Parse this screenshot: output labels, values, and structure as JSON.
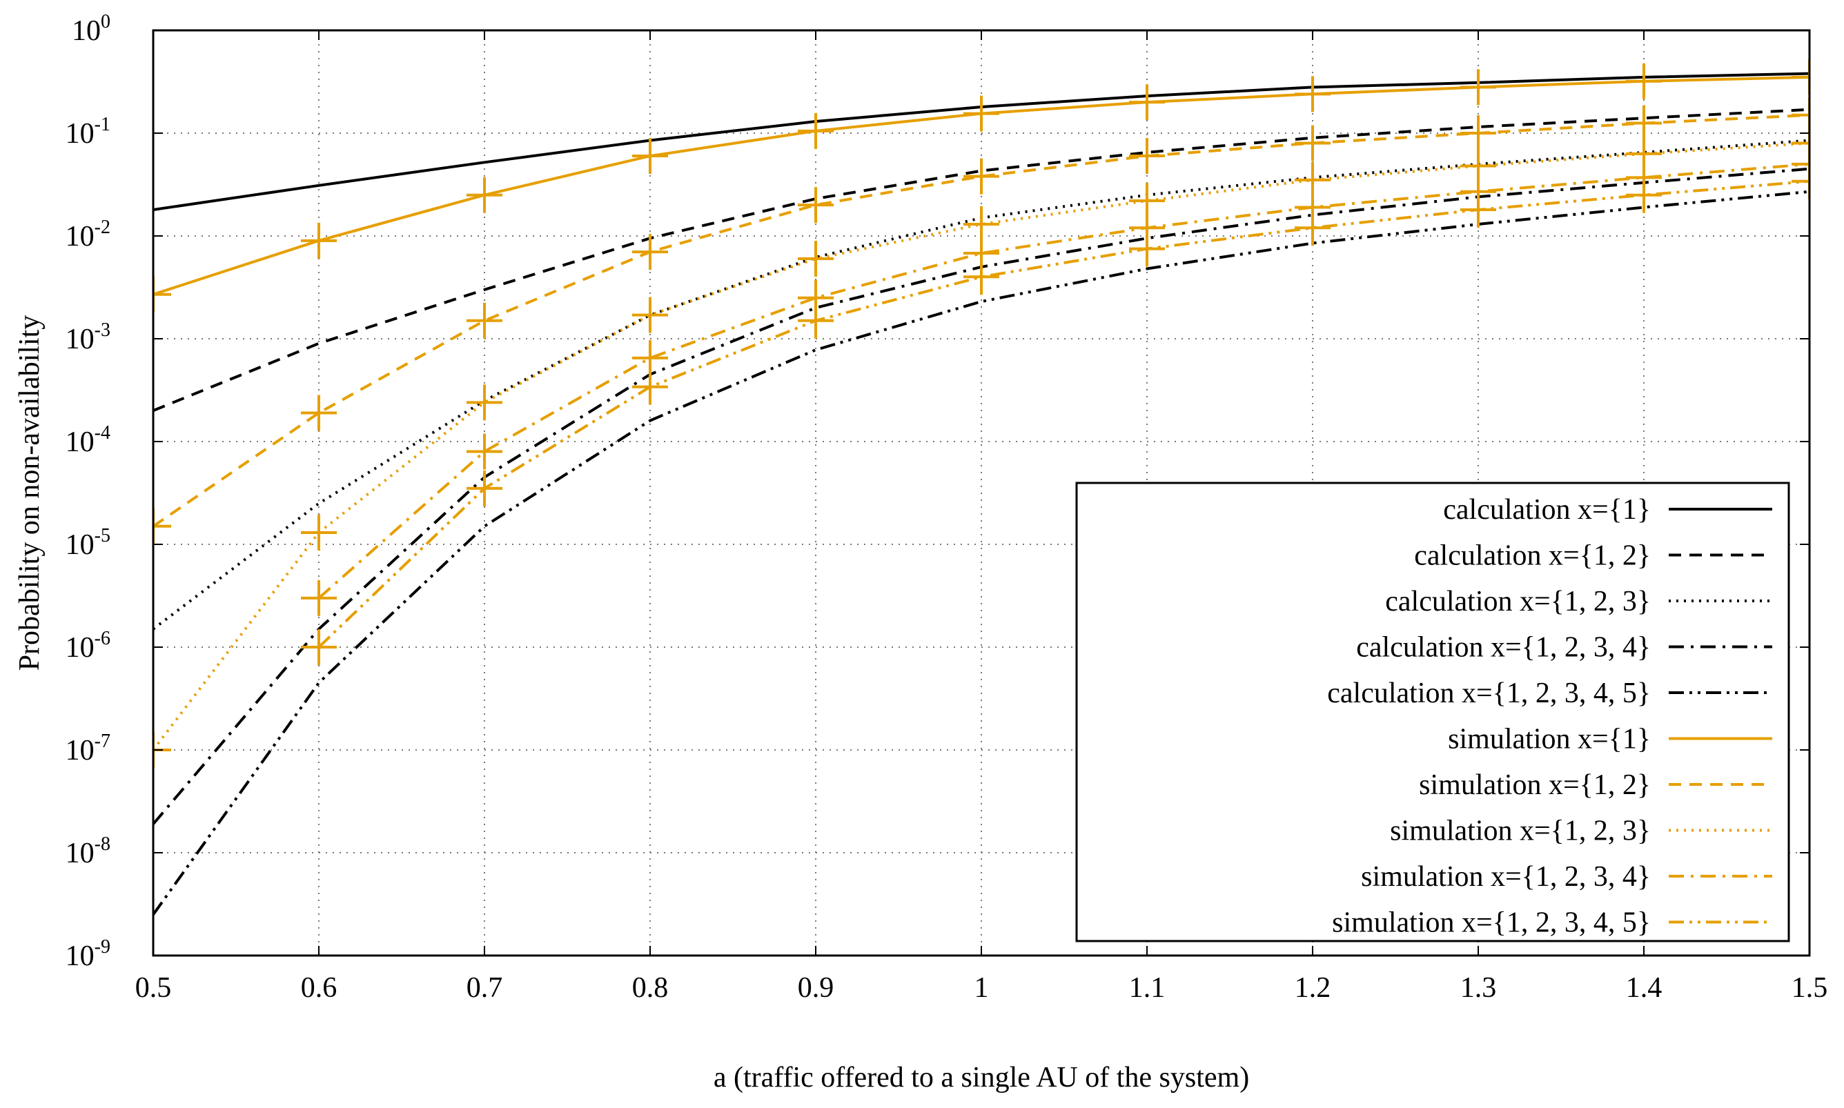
{
  "chart_data": {
    "type": "line",
    "title": "",
    "xlabel": "a (traffic offered to a single AU of the system)",
    "ylabel": "Probability on non-availability",
    "xlim": [
      0.5,
      1.5
    ],
    "ylim": [
      1e-09,
      1
    ],
    "yscale": "log",
    "grid": true,
    "legend_position": "bottom-right",
    "x_ticks": [
      "0.5",
      "0.6",
      "0.7",
      "0.8",
      "0.9",
      "1",
      "1.1",
      "1.2",
      "1.3",
      "1.4",
      "1.5"
    ],
    "y_ticks": [
      {
        "base": "10",
        "exp": "0"
      },
      {
        "base": "10",
        "exp": "-1"
      },
      {
        "base": "10",
        "exp": "-2"
      },
      {
        "base": "10",
        "exp": "-3"
      },
      {
        "base": "10",
        "exp": "-4"
      },
      {
        "base": "10",
        "exp": "-5"
      },
      {
        "base": "10",
        "exp": "-6"
      },
      {
        "base": "10",
        "exp": "-7"
      },
      {
        "base": "10",
        "exp": "-8"
      },
      {
        "base": "10",
        "exp": "-9"
      }
    ],
    "x": [
      0.5,
      0.6,
      0.7,
      0.8,
      0.9,
      1.0,
      1.1,
      1.2,
      1.3,
      1.4,
      1.5
    ],
    "series": [
      {
        "name": "calculation  x={1}",
        "style": "solid",
        "color": "#000000",
        "markers": false,
        "values": [
          0.018,
          0.031,
          0.052,
          0.085,
          0.13,
          0.18,
          0.23,
          0.28,
          0.31,
          0.35,
          0.38
        ]
      },
      {
        "name": "calculation  x={1, 2}",
        "style": "dashed",
        "color": "#000000",
        "markers": false,
        "values": [
          0.0002,
          0.0009,
          0.003,
          0.0095,
          0.023,
          0.043,
          0.065,
          0.09,
          0.115,
          0.14,
          0.17
        ]
      },
      {
        "name": "calculation  x={1, 2, 3}",
        "style": "dotted",
        "color": "#000000",
        "markers": false,
        "values": [
          1.5e-06,
          2.5e-05,
          0.00025,
          0.0017,
          0.0062,
          0.015,
          0.025,
          0.037,
          0.05,
          0.065,
          0.085
        ]
      },
      {
        "name": "calculation  x={1, 2, 3, 4}",
        "style": "dashdot",
        "color": "#000000",
        "markers": false,
        "values": [
          1.9e-08,
          1.5e-06,
          4.5e-05,
          0.00045,
          0.002,
          0.005,
          0.0095,
          0.016,
          0.024,
          0.033,
          0.045
        ]
      },
      {
        "name": "calculation  x={1, 2, 3, 4, 5}",
        "style": "dashdotdot",
        "color": "#000000",
        "markers": false,
        "values": [
          2.5e-09,
          4.5e-07,
          1.5e-05,
          0.00016,
          0.00078,
          0.0023,
          0.0048,
          0.0085,
          0.013,
          0.019,
          0.027
        ]
      },
      {
        "name": "simulation  x={1}",
        "style": "solid",
        "color": "#E69F00",
        "markers": true,
        "values": [
          0.0027,
          0.009,
          0.025,
          0.06,
          0.105,
          0.155,
          0.2,
          0.24,
          0.28,
          0.32,
          0.35
        ]
      },
      {
        "name": "simulation  x={1, 2}",
        "style": "dashed",
        "color": "#E69F00",
        "markers": true,
        "values": [
          1.5e-05,
          0.00019,
          0.0015,
          0.007,
          0.02,
          0.038,
          0.06,
          0.08,
          0.1,
          0.125,
          0.15
        ]
      },
      {
        "name": "simulation  x={1, 2, 3}",
        "style": "dotted",
        "color": "#E69F00",
        "markers": true,
        "values": [
          1e-07,
          1.3e-05,
          0.00024,
          0.0017,
          0.006,
          0.013,
          0.022,
          0.035,
          0.048,
          0.063,
          0.08
        ]
      },
      {
        "name": "simulation  x={1, 2, 3, 4}",
        "style": "dashdot",
        "color": "#E69F00",
        "markers": true,
        "values": [
          null,
          3e-06,
          8e-05,
          0.00065,
          0.0025,
          0.0068,
          0.012,
          0.019,
          0.027,
          0.037,
          0.05
        ]
      },
      {
        "name": "simulation  x={1, 2, 3, 4, 5}",
        "style": "dashdotdot",
        "color": "#E69F00",
        "markers": true,
        "values": [
          null,
          1e-06,
          3.5e-05,
          0.00034,
          0.0015,
          0.004,
          0.0075,
          0.012,
          0.018,
          0.025,
          0.034
        ]
      }
    ]
  }
}
